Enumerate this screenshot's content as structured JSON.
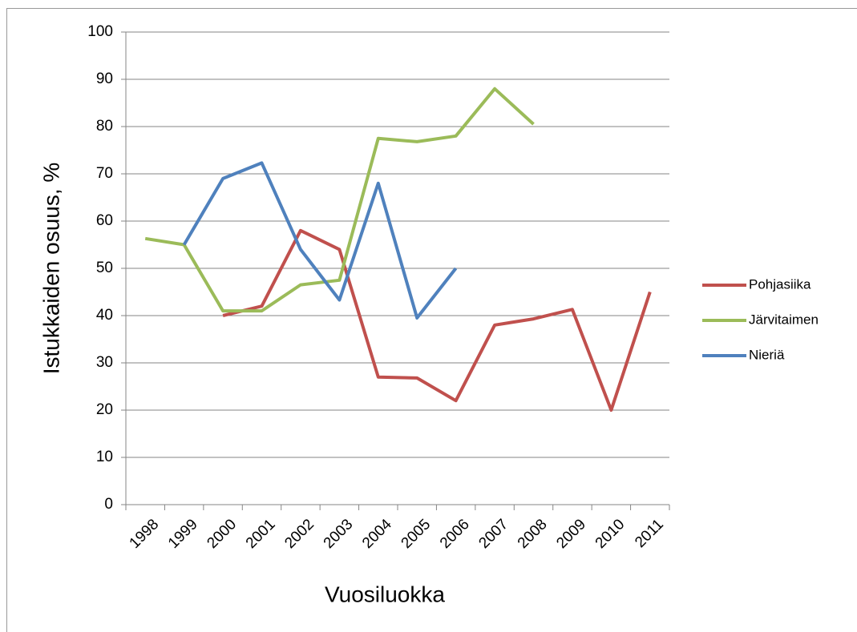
{
  "chart_data": {
    "type": "line",
    "x_label": "Vuosiluokka",
    "y_label": "Istukkaiden osuus, %",
    "categories": [
      "1998",
      "1999",
      "2000",
      "2001",
      "2002",
      "2003",
      "2004",
      "2005",
      "2006",
      "2007",
      "2008",
      "2009",
      "2010",
      "2011"
    ],
    "series": [
      {
        "name": "Pohjasiika",
        "color": "#c0504d",
        "values": [
          null,
          null,
          40,
          42,
          58,
          54,
          27,
          26.8,
          22,
          38,
          39.3,
          41.3,
          20,
          45
        ]
      },
      {
        "name": "Järvitaimen",
        "color": "#9bbb59",
        "values": [
          56.3,
          55,
          41,
          41,
          46.5,
          47.5,
          77.5,
          76.8,
          78,
          88,
          80.5,
          null,
          null,
          null
        ]
      },
      {
        "name": "Nieriä",
        "color": "#4f81bd",
        "values": [
          null,
          55,
          69,
          72.3,
          54,
          43.3,
          68,
          39.5,
          50,
          null,
          null,
          null,
          null,
          null
        ]
      }
    ],
    "ylim": [
      0,
      100
    ],
    "yticks": [
      0,
      10,
      20,
      30,
      40,
      50,
      60,
      70,
      80,
      90,
      100
    ],
    "grid": true,
    "legend": "right"
  }
}
